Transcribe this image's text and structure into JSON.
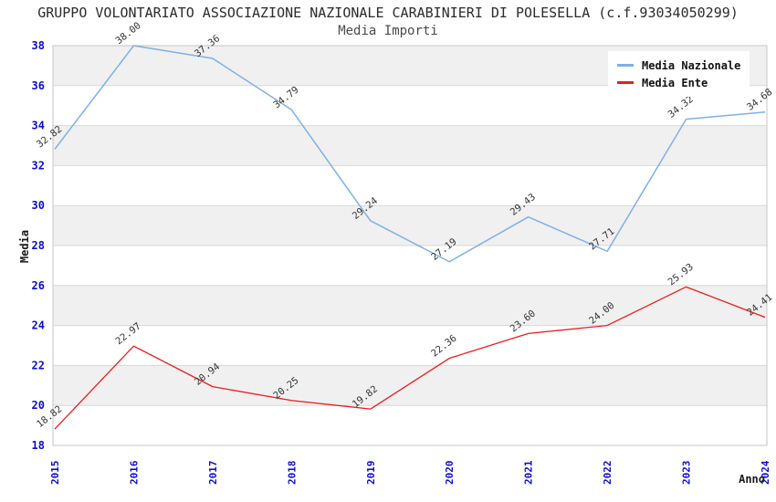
{
  "header": {
    "title": "GRUPPO VOLONTARIATO ASSOCIAZIONE NAZIONALE CARABINIERI DI POLESELLA (c.f.93034050299)",
    "subtitle": "Media Importi"
  },
  "chart_data": {
    "type": "line",
    "x": [
      "2015",
      "2016",
      "2017",
      "2018",
      "2019",
      "2020",
      "2021",
      "2022",
      "2023",
      "2024"
    ],
    "series": [
      {
        "name": "Media Nazionale",
        "color": "#7db1e3",
        "values": [
          32.82,
          38.0,
          37.36,
          34.79,
          29.24,
          27.19,
          29.43,
          27.71,
          34.32,
          34.68
        ]
      },
      {
        "name": "Media Ente",
        "color": "#ee1c1c",
        "values": [
          18.82,
          22.97,
          20.94,
          20.25,
          19.82,
          22.36,
          23.6,
          24.0,
          25.93,
          24.41
        ]
      }
    ],
    "xlabel": "Anno",
    "ylabel": "Media",
    "ylim": [
      18,
      38
    ],
    "ytick_step": 2,
    "grid": "horizontal-bands",
    "legend_position": "top-right",
    "colors": {
      "axis_tick_label": "#0d0dcf",
      "data_label": "#333333",
      "band_gray": "#f0f0f0",
      "band_white": "#ffffff",
      "gridline": "#d9d9d9",
      "plot_border": "#c6c6c6"
    }
  }
}
